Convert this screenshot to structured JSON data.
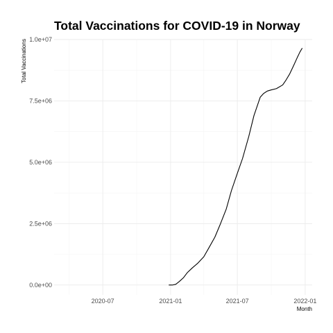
{
  "chart_data": {
    "type": "line",
    "title": "Total Vaccinations for COVID-19 in Norway",
    "xlabel": "Month",
    "ylabel": "Total Vaccinations",
    "x_type": "date",
    "xlim": [
      "2020-02-20",
      "2022-01-20"
    ],
    "ylim": [
      -400000,
      10000000
    ],
    "x_ticks": [
      {
        "value": "2020-07-01",
        "label": "2020-07"
      },
      {
        "value": "2021-01-01",
        "label": "2021-01"
      },
      {
        "value": "2021-07-01",
        "label": "2021-07"
      },
      {
        "value": "2022-01-01",
        "label": "2022-01"
      }
    ],
    "x_minor_ticks": [
      "2020-04-01",
      "2020-10-01",
      "2021-04-01",
      "2021-10-01"
    ],
    "y_ticks": [
      {
        "value": 0,
        "label": "0.0e+00"
      },
      {
        "value": 2500000,
        "label": "2.5e+06"
      },
      {
        "value": 5000000,
        "label": "5.0e+06"
      },
      {
        "value": 7500000,
        "label": "7.5e+06"
      },
      {
        "value": 10000000,
        "label": "1.0e+07"
      }
    ],
    "y_minor_ticks": [
      1250000,
      3750000,
      6250000,
      8750000
    ],
    "grid": true,
    "series": [
      {
        "x": [
          "2020-12-27",
          "2021-01-06",
          "2021-01-15",
          "2021-01-25",
          "2021-02-05",
          "2021-02-15",
          "2021-03-01",
          "2021-03-15",
          "2021-04-01",
          "2021-04-15",
          "2021-05-01",
          "2021-05-15",
          "2021-06-01",
          "2021-06-15",
          "2021-07-01",
          "2021-07-15",
          "2021-08-01",
          "2021-08-15",
          "2021-09-01",
          "2021-09-10",
          "2021-09-20",
          "2021-10-01",
          "2021-10-15",
          "2021-11-01",
          "2021-11-10",
          "2021-11-20",
          "2021-12-01",
          "2021-12-10",
          "2021-12-18",
          "2021-12-24"
        ],
        "y": [
          0,
          0,
          30000,
          150000,
          300000,
          500000,
          700000,
          880000,
          1150000,
          1520000,
          1950000,
          2450000,
          3100000,
          3850000,
          4550000,
          5150000,
          6050000,
          6900000,
          7650000,
          7800000,
          7900000,
          7950000,
          8000000,
          8150000,
          8350000,
          8600000,
          8950000,
          9250000,
          9500000,
          9650000
        ]
      }
    ]
  }
}
